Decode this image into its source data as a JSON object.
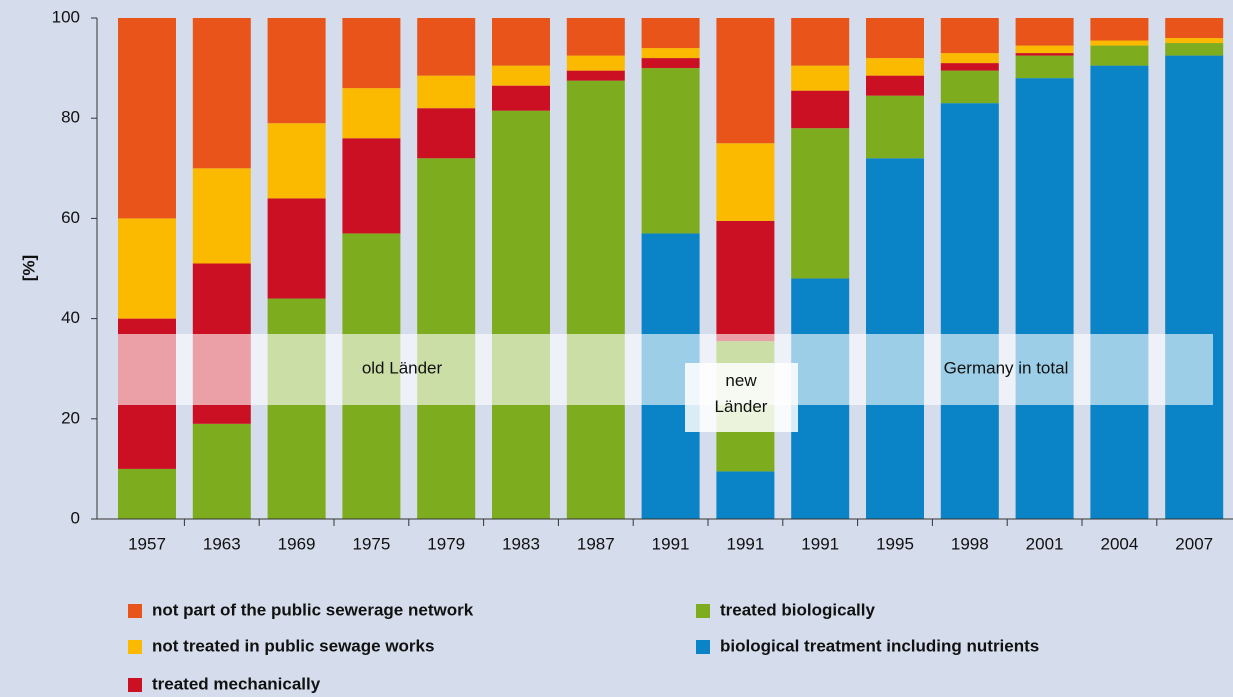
{
  "chart_data": {
    "type": "stacked_bar",
    "y_label": "[%]",
    "categories": [
      "1957",
      "1963",
      "1969",
      "1975",
      "1979",
      "1983",
      "1987",
      "1991",
      "1991",
      "1991",
      "1995",
      "1998",
      "2001",
      "2004",
      "2007"
    ],
    "series": [
      {
        "name": "biological treatment including nutrients",
        "color": "#0a84c6",
        "values": [
          0,
          0,
          0,
          0,
          0,
          0,
          0,
          57,
          9.5,
          48,
          72,
          83,
          88,
          90.5,
          92.5
        ]
      },
      {
        "name": "treated biologically",
        "color": "#7dad1f",
        "values": [
          10,
          19,
          44,
          57,
          72,
          81.5,
          87.5,
          33,
          26,
          30,
          12.5,
          6.5,
          4.5,
          4,
          2.5
        ]
      },
      {
        "name": "treated mechanically",
        "color": "#cc1024",
        "values": [
          30,
          32,
          20,
          19,
          10,
          5,
          2,
          2,
          24,
          7.5,
          4,
          1.5,
          0.5,
          0,
          0
        ]
      },
      {
        "name": "not treated in public sewage works",
        "color": "#fbb900",
        "values": [
          20,
          19,
          15,
          10,
          6.5,
          4,
          3,
          2,
          15.5,
          5,
          3.5,
          2,
          1.5,
          1,
          1
        ]
      },
      {
        "name": "not part of the public sewerage network",
        "color": "#e8541a",
        "values": [
          40,
          30,
          21,
          14,
          11.5,
          9.5,
          7.5,
          6,
          25,
          9.5,
          8,
          7,
          5.5,
          4.5,
          4
        ]
      }
    ],
    "annotations": [
      "old Länder",
      "new Länder",
      "Germany in total"
    ],
    "ylim": [
      0,
      100
    ],
    "yticks": [
      0,
      20,
      40,
      60,
      80,
      100
    ]
  }
}
